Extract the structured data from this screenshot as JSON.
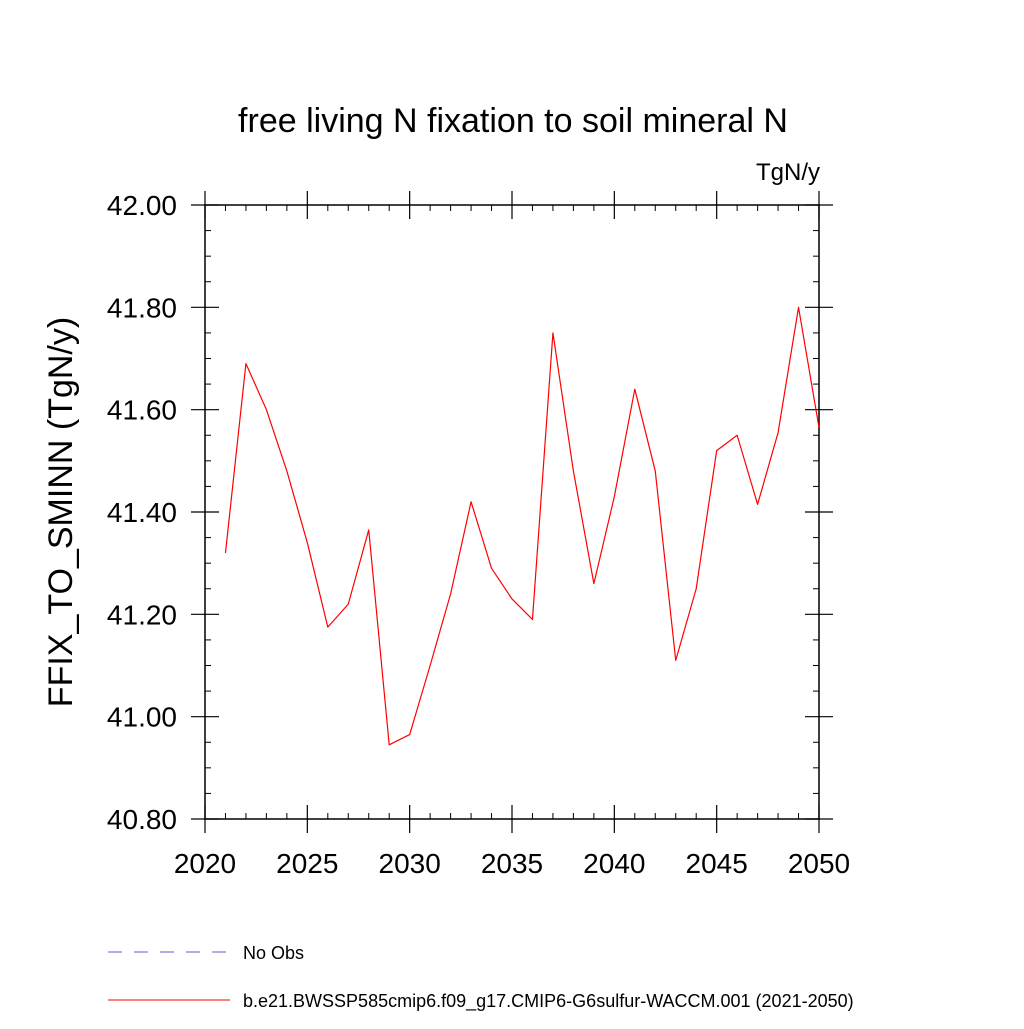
{
  "chart_data": {
    "type": "line",
    "title": "free living N fixation to soil mineral N",
    "units_label": "TgN/y",
    "ylabel": "FFIX_TO_SMINN  (TgN/y)",
    "xlabel": "",
    "xlim": [
      2020,
      2050
    ],
    "ylim": [
      40.8,
      42.0
    ],
    "x_ticks": [
      2020,
      2025,
      2030,
      2035,
      2040,
      2045,
      2050
    ],
    "y_ticks": [
      "40.80",
      "41.00",
      "41.20",
      "41.40",
      "41.60",
      "41.80",
      "42.00"
    ],
    "y_tick_values": [
      40.8,
      41.0,
      41.2,
      41.4,
      41.6,
      41.8,
      42.0
    ],
    "grid": false,
    "legend_position": "bottom",
    "series": [
      {
        "name": "b.e21.BWSSP585cmip6.f09_g17.CMIP6-G6sulfur-WACCM.001 (2021-2050)",
        "color": "#ff0000",
        "x": [
          2021,
          2022,
          2023,
          2024,
          2025,
          2026,
          2027,
          2028,
          2029,
          2030,
          2031,
          2032,
          2033,
          2034,
          2035,
          2036,
          2037,
          2038,
          2039,
          2040,
          2041,
          2042,
          2043,
          2044,
          2045,
          2046,
          2047,
          2048,
          2049,
          2050
        ],
        "values": [
          41.32,
          41.69,
          41.6,
          41.48,
          41.34,
          41.175,
          41.22,
          41.365,
          40.945,
          40.965,
          41.1,
          41.24,
          41.42,
          41.29,
          41.23,
          41.19,
          41.75,
          41.48,
          41.26,
          41.43,
          41.64,
          41.48,
          41.11,
          41.25,
          41.52,
          41.55,
          41.415,
          41.555,
          41.8,
          41.565
        ]
      }
    ],
    "legend": [
      {
        "label": "No Obs",
        "color": "#6a5acd",
        "style": "dashed"
      },
      {
        "label": "b.e21.BWSSP585cmip6.f09_g17.CMIP6-G6sulfur-WACCM.001 (2021-2050)",
        "color": "#ff0000",
        "style": "solid"
      }
    ]
  }
}
